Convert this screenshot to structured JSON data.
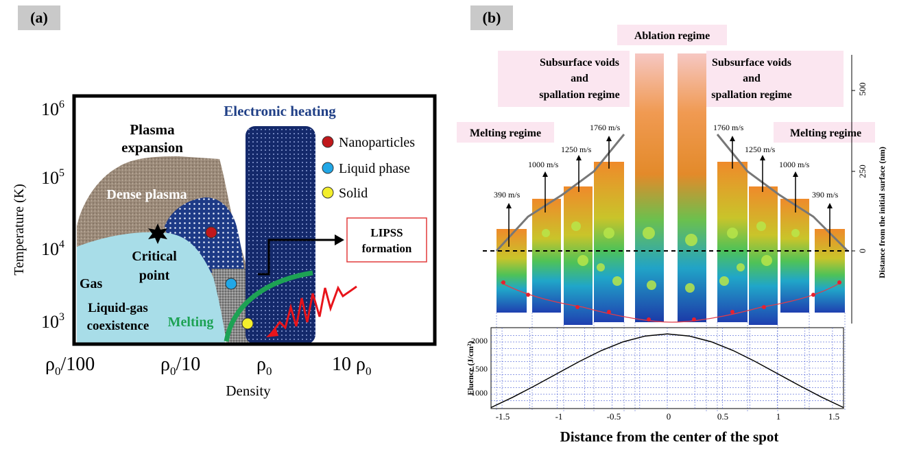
{
  "panel_a": {
    "label": "(a)",
    "y_axis_title": "Temperature (K)",
    "x_axis_title": "Density",
    "y_ticks": [
      {
        "base": "10",
        "exp": "6"
      },
      {
        "base": "10",
        "exp": "5"
      },
      {
        "base": "10",
        "exp": "4"
      },
      {
        "base": "10",
        "exp": "3"
      }
    ],
    "x_ticks": [
      {
        "main": "ρ",
        "sub": "0",
        "tail": "/100"
      },
      {
        "main": "ρ",
        "sub": "0",
        "tail": "/10"
      },
      {
        "main": "ρ",
        "sub": "0",
        "tail": ""
      },
      {
        "main": "10 ρ",
        "sub": "0",
        "tail": ""
      }
    ],
    "regions": {
      "plasma_expansion_line1": "Plasma",
      "plasma_expansion_line2": "expansion",
      "dense_plasma": "Dense plasma",
      "critical_point_line1": "Critical",
      "critical_point_line2": "point",
      "gas": "Gas",
      "liquid_gas_line1": "Liquid-gas",
      "liquid_gas_line2": "coexistence",
      "melting": "Melting",
      "electronic_heating": "Electronic heating"
    },
    "legend": [
      {
        "label": "Nanoparticles",
        "color": "#c0181b"
      },
      {
        "label": "Liquid phase",
        "color": "#21a7e6"
      },
      {
        "label": "Solid",
        "color": "#f3ee2b"
      }
    ],
    "lipss_line1": "LIPSS",
    "lipss_line2": "formation"
  },
  "panel_b": {
    "label": "(b)",
    "regime_labels": {
      "ablation": "Ablation regime",
      "subsurface_left_1": "Subsurface voids",
      "subsurface_left_2": "and",
      "subsurface_left_3": "spallation regime",
      "subsurface_right_1": "Subsurface voids",
      "subsurface_right_2": "and",
      "subsurface_right_3": "spallation regime",
      "melting_left": "Melting regime",
      "melting_right": "Melting regime"
    },
    "velocities_left": [
      "390 m/s",
      "1000 m/s",
      "1250 m/s",
      "1760 m/s"
    ],
    "velocities_right": [
      "1760 m/s",
      "1250 m/s",
      "1000 m/s",
      "390 m/s"
    ],
    "depth_axis_title": "Distance from the  initial surface (nm)",
    "depth_ticks": [
      "500",
      "250",
      "0"
    ],
    "fluence_axis_title": "Fluence (J/cm²)",
    "fluence_ticks": [
      "2000",
      "1500",
      "1000"
    ],
    "x_ticks": [
      "-1.5",
      "-1",
      "-0.5",
      "0",
      "0.5",
      "1",
      "1.5"
    ],
    "x_axis_title": "Distance from the center of the spot",
    "chart_data": {
      "type": "line",
      "xlabel": "Distance from the center of the spot",
      "ylabel": "Fluence (J/cm²)",
      "x": [
        -1.6,
        -1.4,
        -1.2,
        -1.0,
        -0.8,
        -0.6,
        -0.4,
        -0.2,
        0.0,
        0.2,
        0.4,
        0.6,
        0.8,
        1.0,
        1.2,
        1.4,
        1.6
      ],
      "y": [
        620,
        820,
        1040,
        1270,
        1500,
        1710,
        1880,
        1990,
        2030,
        1990,
        1880,
        1710,
        1500,
        1270,
        1040,
        820,
        620
      ],
      "xlim": [
        -1.6,
        1.6
      ],
      "ylim": [
        600,
        2150
      ],
      "grid": true
    }
  }
}
